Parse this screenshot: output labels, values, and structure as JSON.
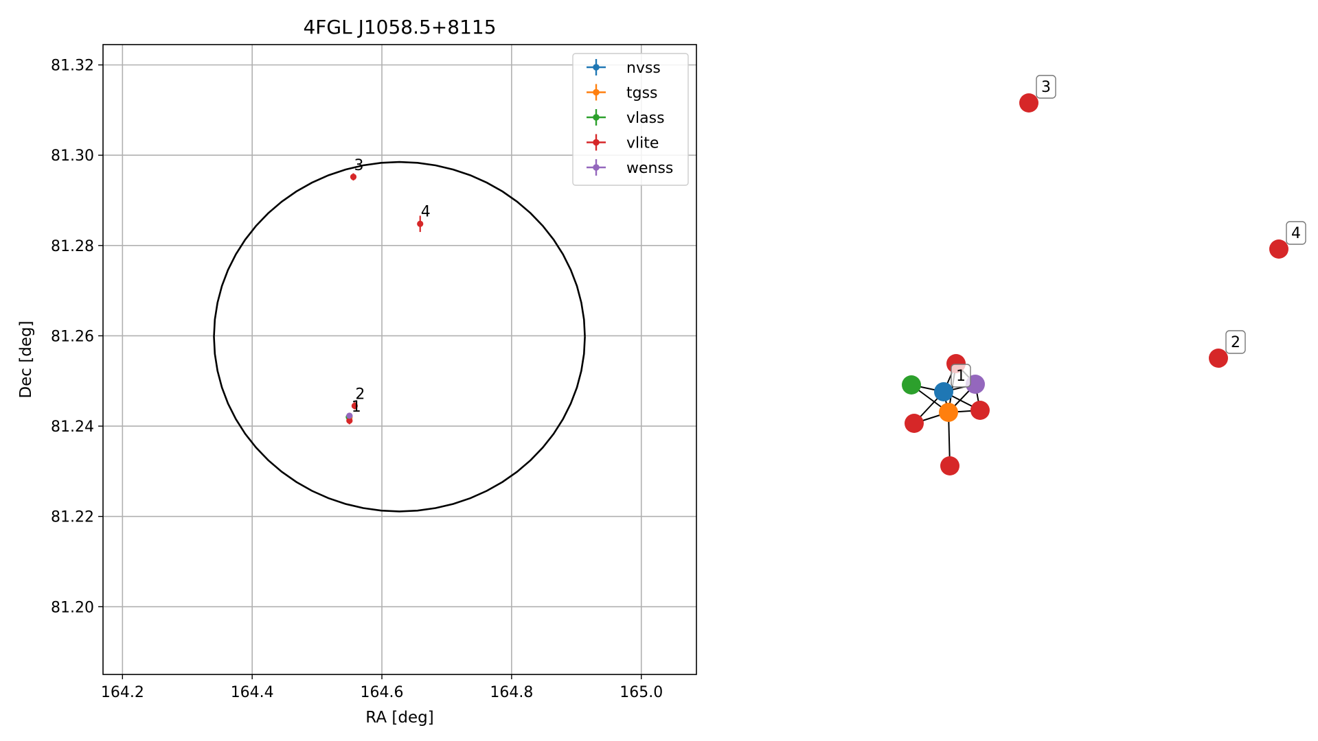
{
  "chart_data": [
    {
      "type": "scatter",
      "title": "4FGL J1058.5+8115",
      "xlabel": "RA [deg]",
      "ylabel": "Dec [deg]",
      "xlim": [
        164.17,
        165.085
      ],
      "ylim": [
        81.185,
        81.3245
      ],
      "xticks": [
        164.2,
        164.4,
        164.6,
        164.8,
        165.0
      ],
      "xtick_labels": [
        "164.2",
        "164.4",
        "164.6",
        "164.8",
        "165.0"
      ],
      "yticks": [
        81.2,
        81.22,
        81.24,
        81.26,
        81.28,
        81.3,
        81.32
      ],
      "ytick_labels": [
        "81.20",
        "81.22",
        "81.24",
        "81.26",
        "81.28",
        "81.30",
        "81.32"
      ],
      "grid": true,
      "legend_position": "top-right",
      "error_ellipse": {
        "center": [
          164.627,
          81.2598
        ],
        "semi_major_ra": 0.286,
        "semi_minor_dec": 0.0387
      },
      "series": [
        {
          "name": "nvss",
          "color": "#1f77b4",
          "points": [
            {
              "x": 164.55,
              "y": 81.2422,
              "yerr": 0.0006
            }
          ]
        },
        {
          "name": "tgss",
          "color": "#ff7f0e",
          "points": [
            {
              "x": 164.55,
              "y": 81.2419,
              "yerr": 0.0006
            }
          ]
        },
        {
          "name": "vlass",
          "color": "#2ca02c",
          "points": [
            {
              "x": 164.549,
              "y": 81.242,
              "yerr": 0.0004
            }
          ]
        },
        {
          "name": "vlite",
          "color": "#d62728",
          "points": [
            {
              "x": 164.55,
              "y": 81.2412,
              "yerr": 0.0008
            },
            {
              "x": 164.558,
              "y": 81.2445,
              "yerr": 0.0008
            },
            {
              "x": 164.556,
              "y": 81.2952,
              "yerr": 0.0008
            },
            {
              "x": 164.659,
              "y": 81.2848,
              "yerr": 0.0018
            }
          ]
        },
        {
          "name": "wenss",
          "color": "#9467bd",
          "points": [
            {
              "x": 164.55,
              "y": 81.2423,
              "yerr": 0.0006
            }
          ]
        }
      ],
      "annotations": [
        {
          "text": "1",
          "x": 164.552,
          "y": 81.242
        },
        {
          "text": "2",
          "x": 164.558,
          "y": 81.2448
        },
        {
          "text": "3",
          "x": 164.556,
          "y": 81.2955
        },
        {
          "text": "4",
          "x": 164.659,
          "y": 81.2852
        }
      ]
    },
    {
      "type": "network",
      "nodes": [
        {
          "id": "n-nvss",
          "color": "#1f77b4",
          "label": "1"
        },
        {
          "id": "n-tgss",
          "color": "#ff7f0e"
        },
        {
          "id": "n-vlass",
          "color": "#2ca02c"
        },
        {
          "id": "n-wenss",
          "color": "#9467bd"
        },
        {
          "id": "n-vlite-a",
          "color": "#d62728"
        },
        {
          "id": "n-vlite-b",
          "color": "#d62728"
        },
        {
          "id": "n-vlite-c",
          "color": "#d62728"
        },
        {
          "id": "n-vlite-d",
          "color": "#d62728"
        },
        {
          "id": "n-vlite-2",
          "color": "#d62728",
          "label": "2"
        },
        {
          "id": "n-vlite-3",
          "color": "#d62728",
          "label": "3"
        },
        {
          "id": "n-vlite-4",
          "color": "#d62728",
          "label": "4"
        }
      ],
      "edges": [
        [
          "n-nvss",
          "n-tgss"
        ],
        [
          "n-nvss",
          "n-vlass"
        ],
        [
          "n-nvss",
          "n-wenss"
        ],
        [
          "n-nvss",
          "n-vlite-a"
        ],
        [
          "n-nvss",
          "n-vlite-b"
        ],
        [
          "n-nvss",
          "n-vlite-c"
        ],
        [
          "n-tgss",
          "n-vlass"
        ],
        [
          "n-tgss",
          "n-wenss"
        ],
        [
          "n-tgss",
          "n-vlite-a"
        ],
        [
          "n-tgss",
          "n-vlite-b"
        ],
        [
          "n-tgss",
          "n-vlite-c"
        ],
        [
          "n-tgss",
          "n-vlite-d"
        ],
        [
          "n-wenss",
          "n-vlite-a"
        ],
        [
          "n-wenss",
          "n-vlite-b"
        ]
      ]
    }
  ]
}
